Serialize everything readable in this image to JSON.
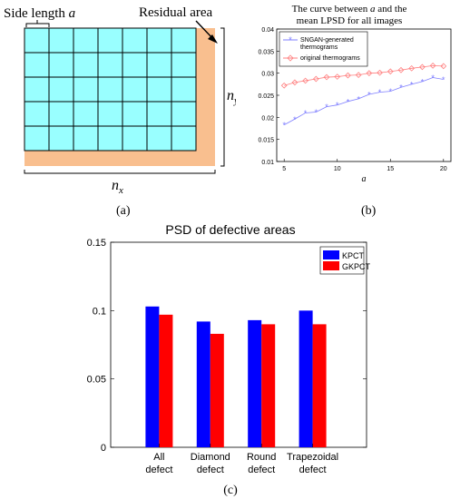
{
  "panel_a": {
    "side_label": "Side length ",
    "side_var": "a",
    "residual_label": "Residual area",
    "nx_base": "n",
    "nx_sub": "x",
    "ny_base": "n",
    "ny_sub": "y",
    "caption": "(a)",
    "colors": {
      "cell": "#99ffff",
      "residual": "#f9bf8f",
      "grid_line": "#000000"
    }
  },
  "chart_data": [
    {
      "type": "line",
      "title_line1_prefix": "The curve between ",
      "title_line1_var": "a",
      "title_line1_suffix": " and the",
      "title_line2": "mean LPSD for all images",
      "xlabel": "a",
      "ylabel": "",
      "x": [
        5,
        6,
        7,
        8,
        9,
        10,
        11,
        12,
        13,
        14,
        15,
        16,
        17,
        18,
        19,
        20
      ],
      "xlim": [
        4.3,
        20.7
      ],
      "ylim": [
        0.01,
        0.04
      ],
      "xticks": [
        5,
        10,
        15,
        20
      ],
      "yticks": [
        "0.01",
        "0.015",
        "0.02",
        "0.025",
        "0.03",
        "0.035",
        "0.04"
      ],
      "grid": false,
      "legend": "top-left",
      "caption": "(b)",
      "series": [
        {
          "name": "SNGAN-generated thermograms",
          "legend_line1": "SNGAN-generated",
          "legend_line2": "thermograms",
          "marker": "star",
          "color": "#7f7fff",
          "values": [
            0.0183,
            0.0196,
            0.021,
            0.0212,
            0.0224,
            0.0228,
            0.0236,
            0.0242,
            0.0252,
            0.0257,
            0.0259,
            0.0268,
            0.0275,
            0.0281,
            0.029,
            0.0286
          ]
        },
        {
          "name": "original thermograms",
          "legend_line1": "original thermograms",
          "marker": "diamond",
          "color": "#ff7f7f",
          "values": [
            0.0272,
            0.0279,
            0.0283,
            0.0287,
            0.0291,
            0.0292,
            0.0295,
            0.0296,
            0.03,
            0.0301,
            0.0304,
            0.0307,
            0.0311,
            0.0314,
            0.0317,
            0.0316
          ]
        }
      ]
    },
    {
      "type": "bar",
      "title": "PSD of defective areas",
      "categories": [
        [
          "All",
          "defect"
        ],
        [
          "Diamond",
          "defect"
        ],
        [
          "Round",
          "defect"
        ],
        [
          "Trapezoidal",
          "defect"
        ]
      ],
      "ylim": [
        0,
        0.15
      ],
      "yticks": [
        "0",
        "0.05",
        "0.1",
        "0.15"
      ],
      "legend": "top-right",
      "grid": false,
      "caption": "(c)",
      "series": [
        {
          "name": "KPCT",
          "color": "#0000ff",
          "values": [
            0.103,
            0.092,
            0.093,
            0.1
          ]
        },
        {
          "name": "GKPCT",
          "color": "#ff0000",
          "values": [
            0.097,
            0.083,
            0.09,
            0.09
          ]
        }
      ]
    }
  ]
}
